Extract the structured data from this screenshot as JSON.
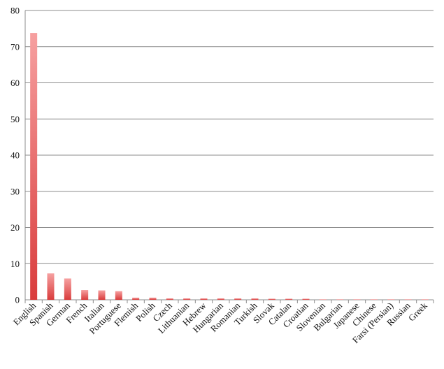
{
  "chart_data": {
    "type": "bar",
    "title": "",
    "xlabel": "",
    "ylabel": "",
    "ylim": [
      0,
      80
    ],
    "yticks": [
      "0",
      "10",
      "20",
      "30",
      "40",
      "50",
      "60",
      "70",
      "80"
    ],
    "grid": true,
    "legend": "none",
    "bar_color": "#d93c3c",
    "bar_color_light": "#f6a0a0",
    "categories": [
      "English",
      "Spanish",
      "German",
      "French",
      "Italian",
      "Portuguese",
      "Flemish",
      "Polish",
      "Czech",
      "Lithuanian",
      "Hebrew",
      "Hungarian",
      "Romanian",
      "Turkish",
      "Slovak",
      "Catalan",
      "Croatian",
      "Slovenian",
      "Bulgarian",
      "Japanese",
      "Chinese",
      "Farsi (Persian)",
      "Russian",
      "Greek"
    ],
    "values": [
      73.8,
      7.3,
      5.9,
      2.7,
      2.6,
      2.4,
      0.6,
      0.6,
      0.4,
      0.4,
      0.4,
      0.4,
      0.4,
      0.4,
      0.3,
      0.3,
      0.3,
      0.1,
      0.1,
      0.1,
      0.1,
      0.1,
      0.1,
      0.1
    ]
  }
}
